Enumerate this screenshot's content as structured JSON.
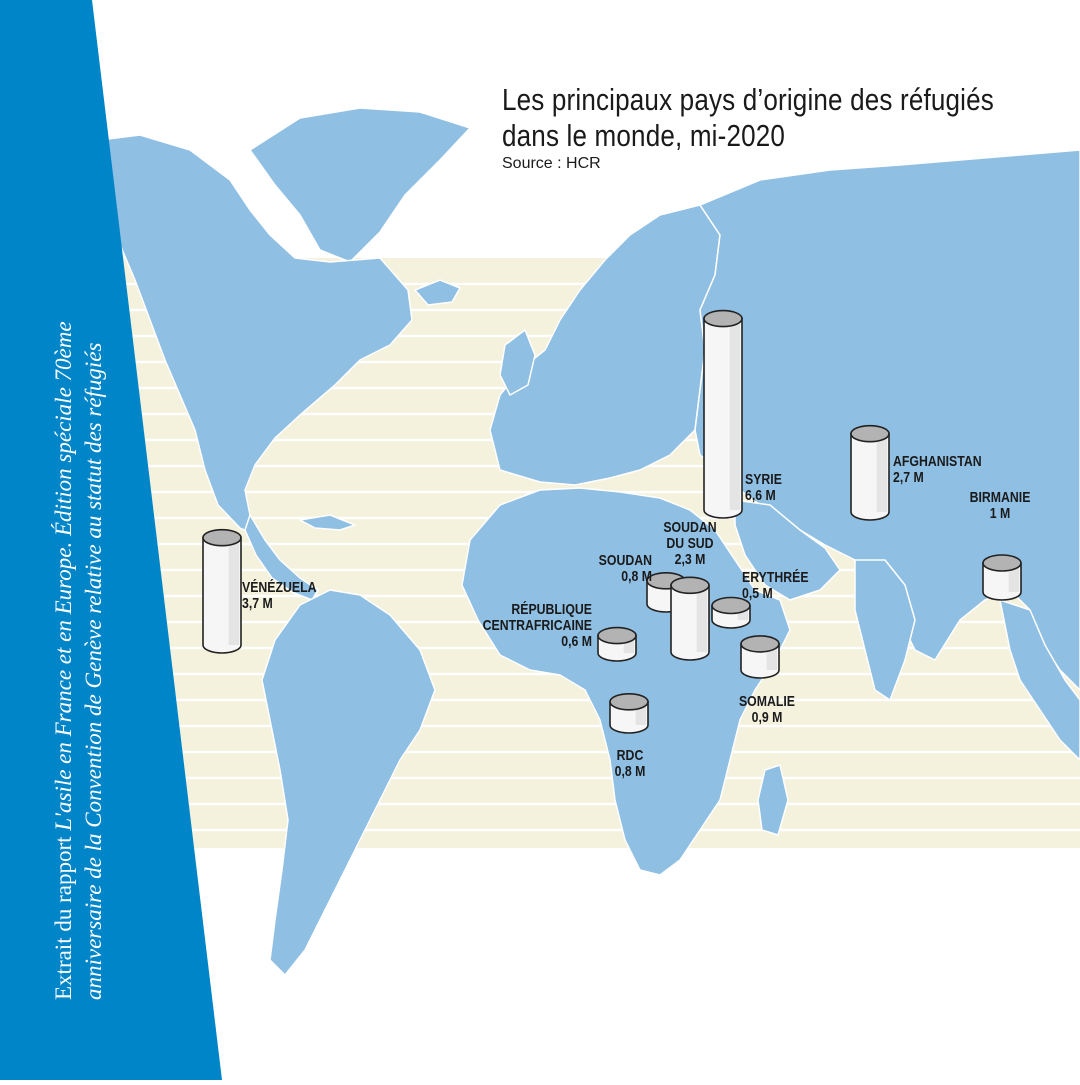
{
  "title": {
    "line1": "Les principaux pays d’origine des réfugiés",
    "line2": "dans le monde, mi-2020",
    "source": "Source : HCR"
  },
  "sidebar": {
    "line1_plain": "Extrait du rapport ",
    "line1_italic": "L'asile en France et en Europe. Édition spéciale 70ème",
    "line2": "anniversaire de la Convention de Genève relative au statut des réfugiés"
  },
  "colors": {
    "ocean_band": "#f4f1dc",
    "land": "#8fbfe3",
    "sidebar": "#0085c8",
    "cylinder_top": "#b3b3b3",
    "cylinder_body": "#f6f6f6"
  },
  "countries": [
    {
      "name": "SYRIE",
      "value": "6,6 M",
      "millions": 6.6
    },
    {
      "name": "VÉNÉZUELA",
      "value": "3,7 M",
      "millions": 3.7
    },
    {
      "name": "AFGHANISTAN",
      "value": "2,7 M",
      "millions": 2.7
    },
    {
      "name": "SOUDAN DU SUD",
      "name_line1": "SOUDAN",
      "name_line2": "DU SUD",
      "value": "2,3 M",
      "millions": 2.3
    },
    {
      "name": "BIRMANIE",
      "value": "1 M",
      "millions": 1.0
    },
    {
      "name": "SOMALIE",
      "value": "0,9 M",
      "millions": 0.9
    },
    {
      "name": "SOUDAN",
      "value": "0,8 M",
      "millions": 0.8
    },
    {
      "name": "RDC",
      "value": "0,8 M",
      "millions": 0.8
    },
    {
      "name": "RÉPUBLIQUE CENTRAFRICAINE",
      "name_line1": "RÉPUBLIQUE",
      "name_line2": "CENTRAFRICAINE",
      "value": "0,6 M",
      "millions": 0.6
    },
    {
      "name": "ERYTHRÉE",
      "value": "0,5 M",
      "millions": 0.5
    }
  ]
}
